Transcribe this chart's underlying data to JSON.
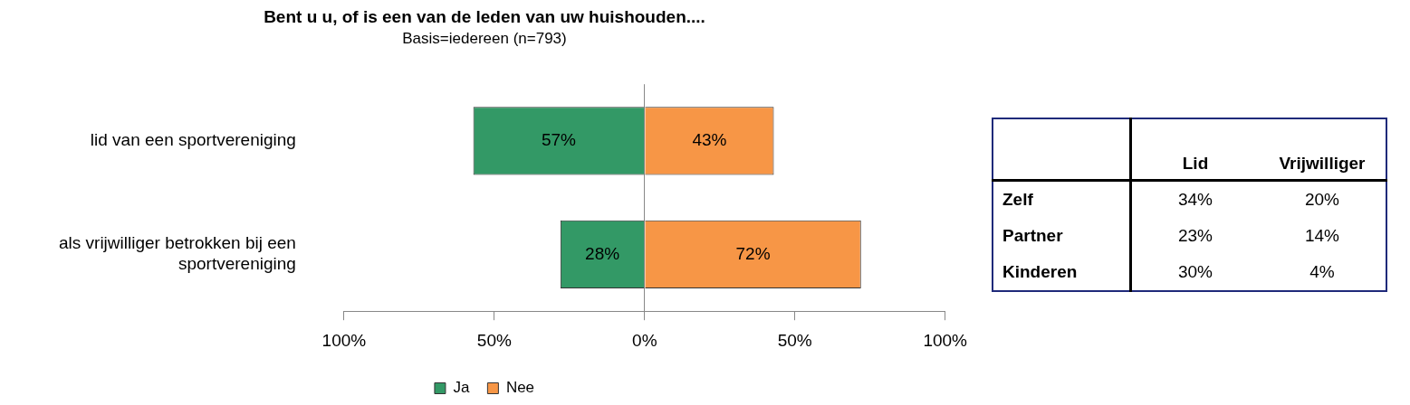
{
  "chart_data": [
    {
      "type": "bar",
      "title": "Bent u u, of is een van de leden van uw huishouden....",
      "subtitle": "Basis=iedereen (n=793)",
      "orientation": "horizontal",
      "categories": [
        "lid van een sportvereniging",
        "als vrijwilliger betrokken bij een sportvereniging"
      ],
      "series": [
        {
          "name": "Ja",
          "color": "#339966",
          "values": [
            57,
            28
          ],
          "base": [
            -57,
            -28
          ],
          "value_labels": [
            "57%",
            "28%"
          ]
        },
        {
          "name": "Nee",
          "color": "#f79646",
          "values": [
            43,
            72
          ],
          "value_labels": [
            "43%",
            "72%"
          ]
        }
      ],
      "xlim": [
        -100,
        100
      ],
      "xticks": [
        {
          "value": -100,
          "label": "100%"
        },
        {
          "value": -50,
          "label": "50%"
        },
        {
          "value": 0,
          "label": "0%"
        },
        {
          "value": 50,
          "label": "50%"
        },
        {
          "value": 100,
          "label": "100%"
        }
      ],
      "legend": "bottom"
    },
    {
      "type": "other",
      "categories": [
        "Lid",
        "Vrijwilliger"
      ],
      "y_categories": [
        "Zelf",
        "Partner",
        "Kinderen"
      ],
      "cell_labels": [
        [
          "34%",
          "20%"
        ],
        [
          "23%",
          "14%"
        ],
        [
          "30%",
          "4%"
        ]
      ]
    }
  ]
}
